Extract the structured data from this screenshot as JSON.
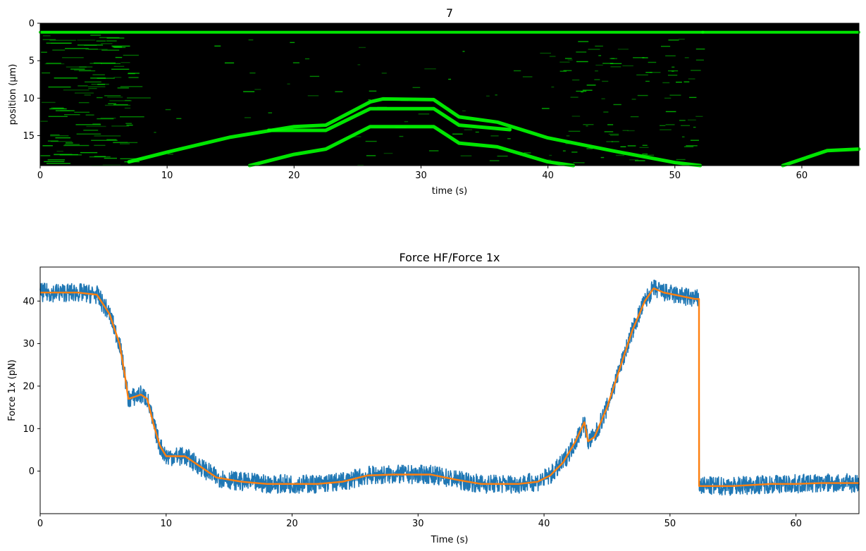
{
  "chart_data": [
    {
      "type": "heatmap",
      "title": "7",
      "xlabel": "time (s)",
      "ylabel": "position (µm)",
      "xlim": [
        0,
        64.5
      ],
      "ylim": [
        19,
        0
      ],
      "xticks": [
        0,
        10,
        20,
        30,
        40,
        50,
        60
      ],
      "yticks": [
        0,
        5,
        10,
        15
      ],
      "colormap": "green",
      "colors": {
        "signal": "#00ff00",
        "background": "#000000"
      },
      "traces": [
        {
          "name": "",
          "points": [
            [
              0,
              1.2
            ],
            [
              52.2,
              1.2
            ]
          ]
        },
        {
          "name": "",
          "points": [
            [
              52.2,
              1.2
            ],
            [
              64.5,
              1.2
            ]
          ]
        },
        {
          "name": "",
          "points": [
            [
              7,
              18.5
            ],
            [
              10,
              17.2
            ],
            [
              15,
              15.2
            ],
            [
              20,
              13.8
            ],
            [
              22.5,
              13.6
            ],
            [
              26,
              10.5
            ],
            [
              27,
              10.1
            ],
            [
              31,
              10.2
            ],
            [
              33,
              12.5
            ],
            [
              36,
              13.2
            ],
            [
              40,
              15.3
            ],
            [
              45,
              17
            ],
            [
              50,
              18.6
            ],
            [
              52,
              19
            ]
          ]
        },
        {
          "name": "",
          "points": [
            [
              16.5,
              19
            ],
            [
              20,
              17.5
            ],
            [
              22.5,
              16.8
            ],
            [
              26,
              13.8
            ],
            [
              31,
              13.8
            ],
            [
              33,
              16
            ],
            [
              36,
              16.5
            ],
            [
              40,
              18.5
            ],
            [
              42,
              19
            ]
          ]
        },
        {
          "name": "",
          "points": [
            [
              18,
              14.3
            ],
            [
              22.5,
              14.3
            ],
            [
              26,
              11.4
            ],
            [
              31,
              11.4
            ],
            [
              33,
              13.6
            ],
            [
              37,
              14.2
            ]
          ]
        },
        {
          "name": "",
          "points": [
            [
              58.5,
              19
            ],
            [
              62,
              17
            ],
            [
              64.5,
              16.8
            ]
          ]
        }
      ]
    },
    {
      "type": "line",
      "title": "Force HF/Force 1x",
      "xlabel": "Time (s)",
      "ylabel": "Force 1x (pN)",
      "xlim": [
        0,
        65
      ],
      "ylim": [
        -10,
        48
      ],
      "xticks": [
        0,
        10,
        20,
        30,
        40,
        50,
        60
      ],
      "yticks": [
        0,
        10,
        20,
        30,
        40
      ],
      "series": [
        {
          "name": "",
          "color": "#1f77b4",
          "role": "raw",
          "noise_amplitude": 2.2,
          "x": [
            0,
            3,
            4.5,
            5.5,
            6.3,
            6.7,
            7,
            7.5,
            8,
            8.5,
            9,
            9.5,
            10,
            11.5,
            12.5,
            14,
            16,
            18,
            20,
            22,
            24,
            26,
            28,
            31,
            33,
            35,
            38,
            39.5,
            40.5,
            41.5,
            42.5,
            43.2,
            43.5,
            44,
            45,
            46,
            47,
            48,
            48.7,
            49.5,
            52,
            52.3,
            52.31,
            55,
            58,
            60,
            62,
            65
          ],
          "y": [
            42,
            42,
            41.5,
            37,
            30,
            23,
            17,
            17.5,
            18,
            17,
            11,
            6,
            3.5,
            3.5,
            1.5,
            -1.5,
            -2.5,
            -3,
            -3,
            -3,
            -2.5,
            -1,
            -0.8,
            -0.8,
            -2,
            -3,
            -3,
            -2.5,
            -1,
            2,
            7,
            11.5,
            7,
            8,
            15,
            24,
            33,
            40,
            43,
            42,
            40.5,
            40.5,
            -3.5,
            -3.5,
            -3,
            -3,
            -2.8,
            -2.8
          ]
        },
        {
          "name": "",
          "color": "#ff7f0e",
          "role": "smoothed",
          "x": [
            0,
            3,
            4.5,
            5.5,
            6.3,
            6.7,
            7,
            7.5,
            8,
            8.5,
            9,
            9.5,
            10,
            11.5,
            12.5,
            14,
            16,
            18,
            20,
            22,
            24,
            26,
            28,
            31,
            33,
            35,
            38,
            39.5,
            40.5,
            41.5,
            42.5,
            43.2,
            43.5,
            44,
            45,
            46,
            47,
            48,
            48.7,
            49.5,
            52,
            52.3,
            52.31,
            55,
            58,
            60,
            62,
            65
          ],
          "y": [
            42,
            42,
            41.5,
            37,
            30,
            23,
            17,
            17.5,
            18,
            17,
            11,
            6,
            3.5,
            3.5,
            1.5,
            -1.5,
            -2.5,
            -3,
            -3,
            -3,
            -2.5,
            -1,
            -0.8,
            -0.8,
            -2,
            -3,
            -3,
            -2.5,
            -1,
            2,
            7,
            11.5,
            7,
            8,
            15,
            24,
            33,
            40,
            43,
            42,
            40.5,
            40.5,
            -3.5,
            -3.5,
            -3,
            -3,
            -2.8,
            -2.8
          ]
        }
      ]
    }
  ]
}
